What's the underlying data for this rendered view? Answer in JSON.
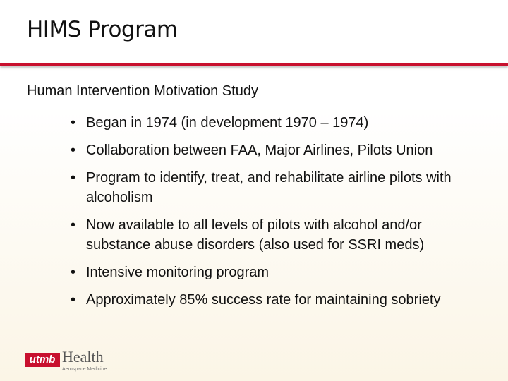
{
  "header": {
    "title": "HIMS Program"
  },
  "body": {
    "subtitle": "Human Intervention Motivation Study",
    "bullets": [
      "Began in 1974 (in development 1970 – 1974)",
      "Collaboration between FAA, Major Airlines, Pilots Union",
      "Program to identify, treat, and rehabilitate airline pilots with alcoholism",
      "Now available to all levels of pilots with alcohol and/or substance abuse disorders (also used for SSRI meds)",
      "Intensive monitoring program",
      "Approximately 85% success rate for maintaining sobriety"
    ]
  },
  "footer": {
    "logo": {
      "mark": "utmb",
      "name": "Health",
      "unit": "Aerospace Medicine"
    }
  }
}
